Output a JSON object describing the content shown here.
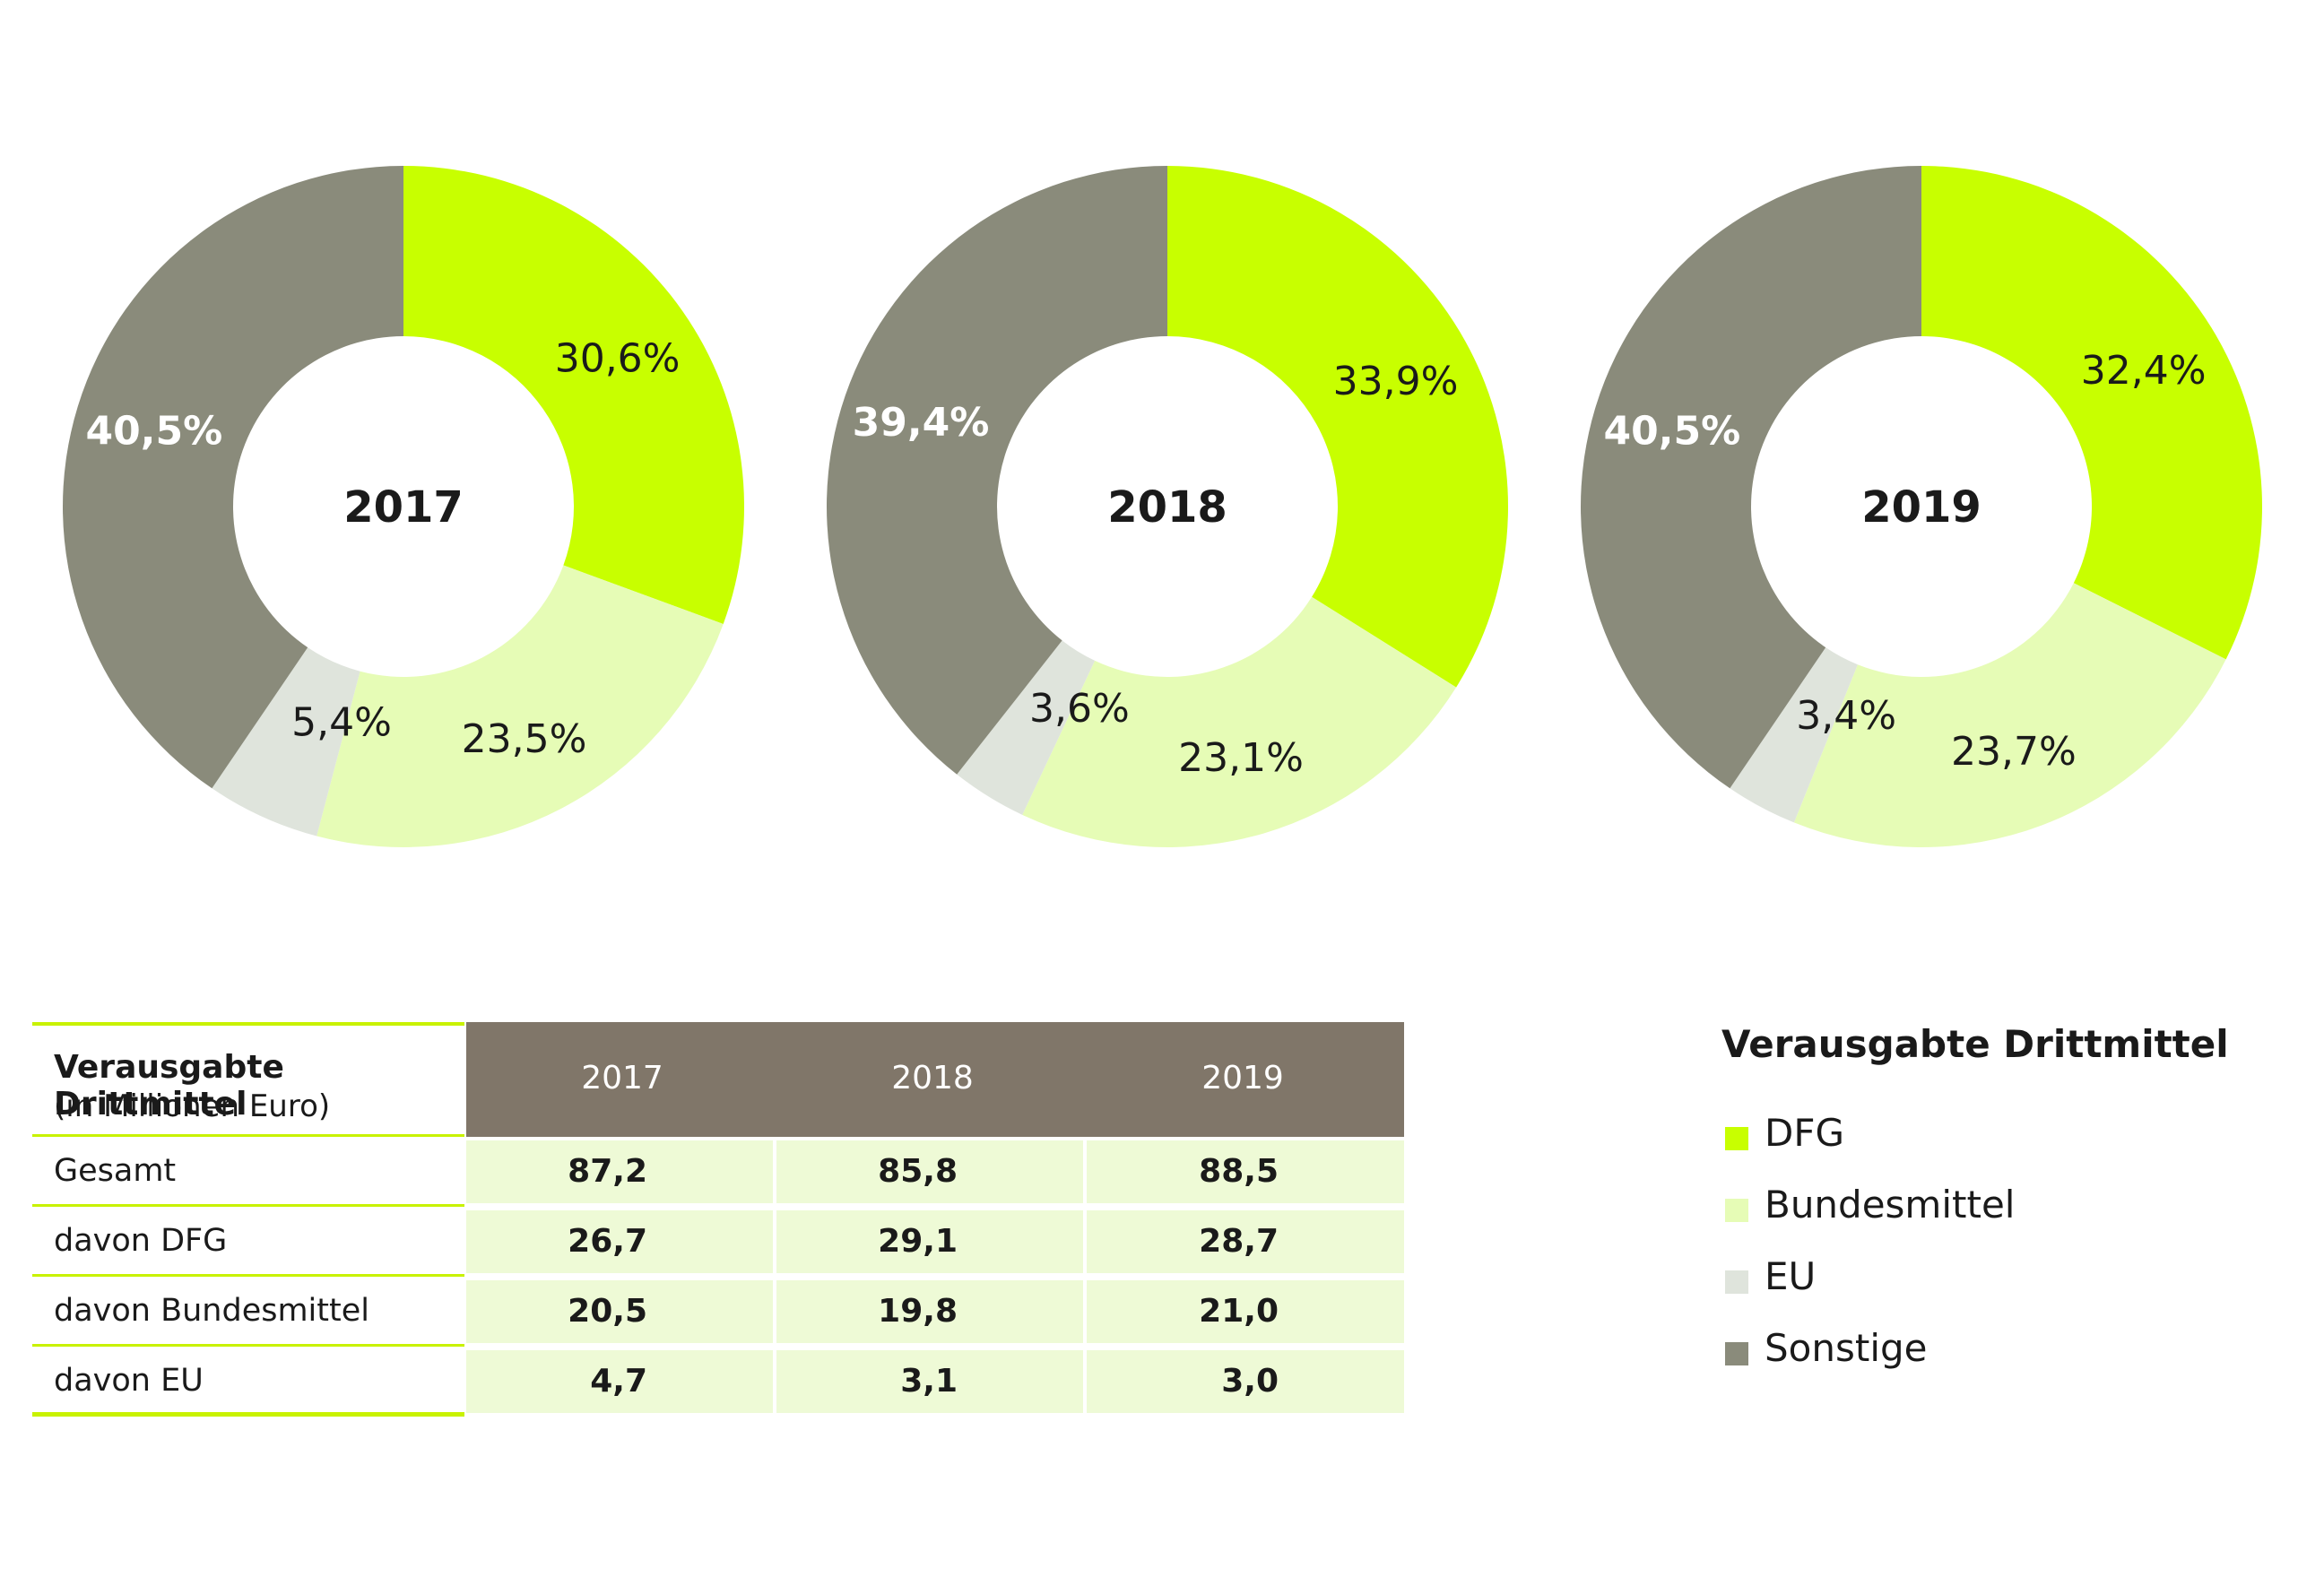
{
  "colors": {
    "DFG": "#c8ff00",
    "Bundesmittel": "#e6fcb6",
    "EU": "#dfe4dc",
    "Sonstige": "#8a8b7b"
  },
  "chart_data": [
    {
      "type": "pie",
      "center_label": "2017",
      "slices": [
        {
          "name": "DFG",
          "value": 30.6,
          "label": "30,6%"
        },
        {
          "name": "Bundesmittel",
          "value": 23.5,
          "label": "23,5%"
        },
        {
          "name": "EU",
          "value": 5.4,
          "label": "5,4%"
        },
        {
          "name": "Sonstige",
          "value": 40.5,
          "label": "40,5%"
        }
      ]
    },
    {
      "type": "pie",
      "center_label": "2018",
      "slices": [
        {
          "name": "DFG",
          "value": 33.9,
          "label": "33,9%"
        },
        {
          "name": "Bundesmittel",
          "value": 23.1,
          "label": "23,1%"
        },
        {
          "name": "EU",
          "value": 3.6,
          "label": "3,6%"
        },
        {
          "name": "Sonstige",
          "value": 39.4,
          "label": "39,4%"
        }
      ]
    },
    {
      "type": "pie",
      "center_label": "2019",
      "slices": [
        {
          "name": "DFG",
          "value": 32.4,
          "label": "32,4%"
        },
        {
          "name": "Bundesmittel",
          "value": 23.7,
          "label": "23,7%"
        },
        {
          "name": "EU",
          "value": 3.4,
          "label": "3,4%"
        },
        {
          "name": "Sonstige",
          "value": 40.5,
          "label": "40,5%"
        }
      ]
    }
  ],
  "table": {
    "title": "Verausgabte Drittmittel",
    "subtitle": "(in Millionen Euro)",
    "years": [
      "2017",
      "2018",
      "2019"
    ],
    "rows": [
      {
        "label": "Gesamt",
        "values": [
          "87,2",
          "85,8",
          "88,5"
        ]
      },
      {
        "label": "davon DFG",
        "values": [
          "26,7",
          "29,1",
          "28,7"
        ]
      },
      {
        "label": "davon Bundesmittel",
        "values": [
          "20,5",
          "19,8",
          "21,0"
        ]
      },
      {
        "label": "davon EU",
        "values": [
          "4,7",
          "3,1",
          "3,0"
        ]
      }
    ]
  },
  "legend": {
    "title": "Verausgabte Drittmittel",
    "items": [
      "DFG",
      "Bundesmittel",
      "EU",
      "Sonstige"
    ]
  }
}
